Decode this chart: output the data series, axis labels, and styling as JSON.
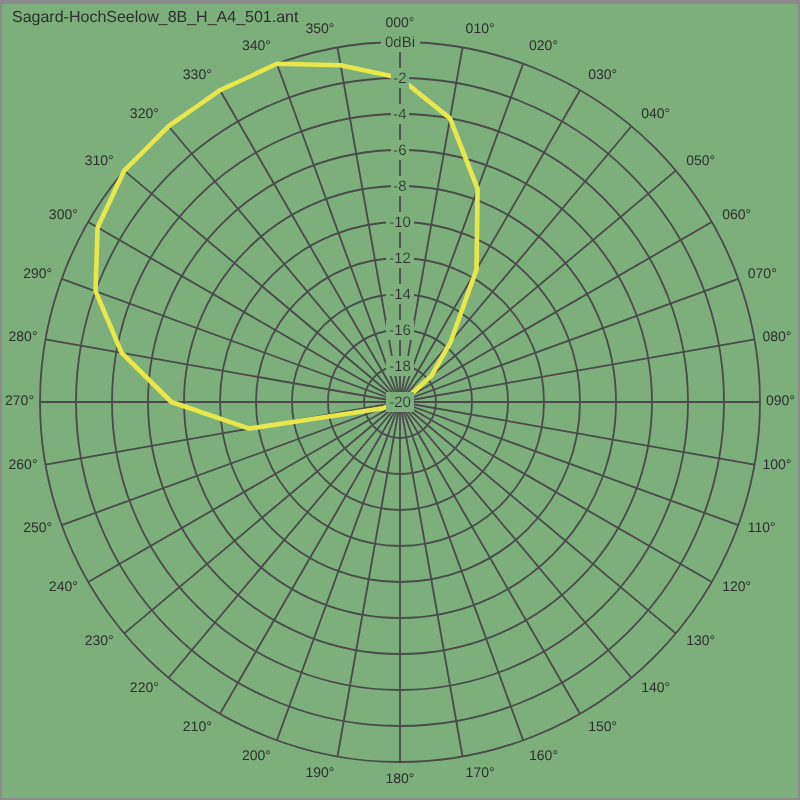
{
  "chart_data": {
    "type": "radar",
    "title": "Sagard-HochSeelow_8B_H_A4_501.ant",
    "categories": [
      "000°",
      "010°",
      "020°",
      "030°",
      "040°",
      "050°",
      "060°",
      "070°",
      "080°",
      "090°",
      "100°",
      "110°",
      "120°",
      "130°",
      "140°",
      "150°",
      "160°",
      "170°",
      "180°",
      "190°",
      "200°",
      "210°",
      "220°",
      "230°",
      "240°",
      "250°",
      "260°",
      "270°",
      "280°",
      "290°",
      "300°",
      "310°",
      "320°",
      "330°",
      "340°",
      "350°"
    ],
    "series": [
      {
        "color": "#e8e84c",
        "values": [
          -2,
          -4,
          -7.4,
          -11.5,
          -15.6,
          -17.7,
          -19.5,
          -20,
          -20,
          -20,
          -20,
          -20,
          -20,
          -20,
          -20,
          -20,
          -20,
          -20,
          -20,
          -20,
          -20,
          -20,
          -20,
          -20,
          -20,
          -19,
          -11.5,
          -7.3,
          -4.3,
          -2,
          -0.6,
          0,
          0,
          0,
          0,
          -1
        ]
      }
    ],
    "ylim": [
      -20,
      0
    ],
    "yticks": [
      {
        "value": 0,
        "label": "0dBi"
      },
      -2,
      -4,
      -6,
      -8,
      -10,
      -12,
      -14,
      -16,
      -18,
      -20
    ],
    "grid": true,
    "marker": "none",
    "line_style": "solid"
  }
}
